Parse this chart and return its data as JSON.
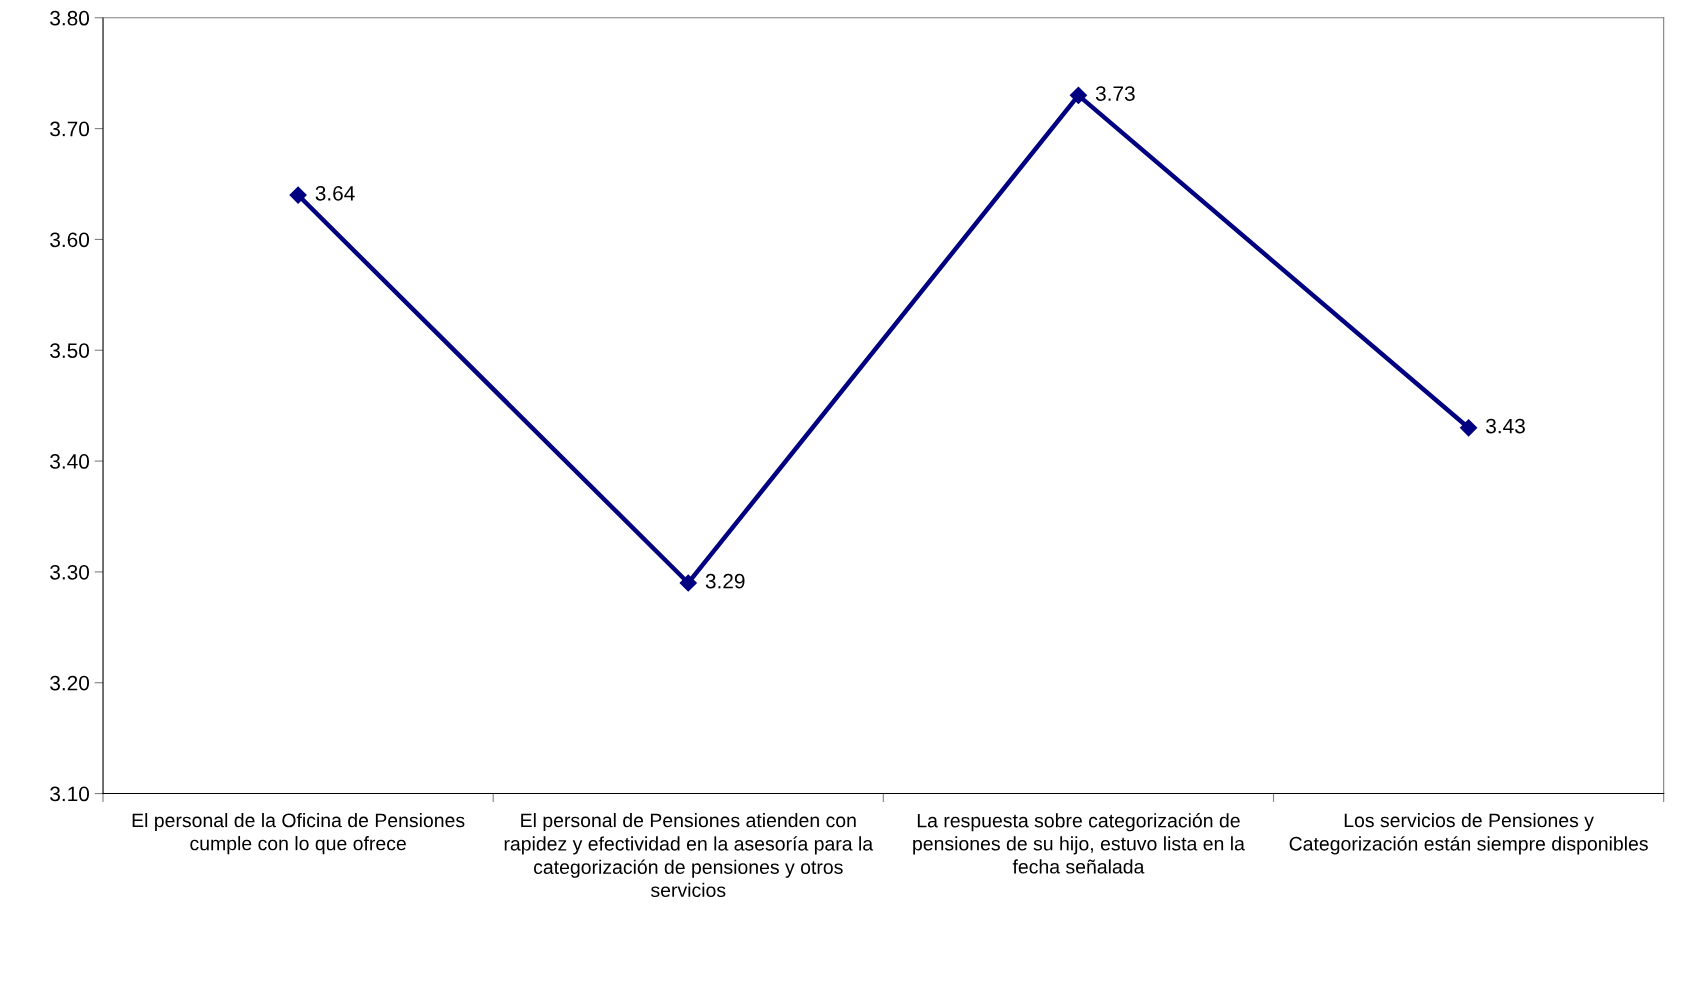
{
  "chart_data": {
    "type": "line",
    "categories": [
      "El personal de la Oficina de Pensiones cumple con lo que ofrece",
      "El personal de Pensiones atienden con rapidez y efectividad en la asesoría para la categorización de pensiones y otros servicios",
      "La respuesta sobre categorización de pensiones de su hijo, estuvo lista en la fecha señalada",
      "Los servicios de Pensiones y Categorización están siempre disponibles"
    ],
    "series": [
      {
        "color": "#000080",
        "values": [
          3.64,
          3.29,
          3.73,
          3.43
        ]
      }
    ],
    "ylim": [
      3.1,
      3.8
    ],
    "yticks": [
      {
        "value": 3.1,
        "label": "3.10"
      },
      {
        "value": 3.2,
        "label": "3.20"
      },
      {
        "value": 3.3,
        "label": "3.30"
      },
      {
        "value": 3.4,
        "label": "3.40"
      },
      {
        "value": 3.5,
        "label": "3.50"
      },
      {
        "value": 3.6,
        "label": "3.60"
      },
      {
        "value": 3.7,
        "label": "3.70"
      },
      {
        "value": 3.8,
        "label": "3.80"
      }
    ],
    "data_labels": true,
    "grid": false,
    "legend": false,
    "marker": "diamond",
    "line_style": "solid"
  }
}
